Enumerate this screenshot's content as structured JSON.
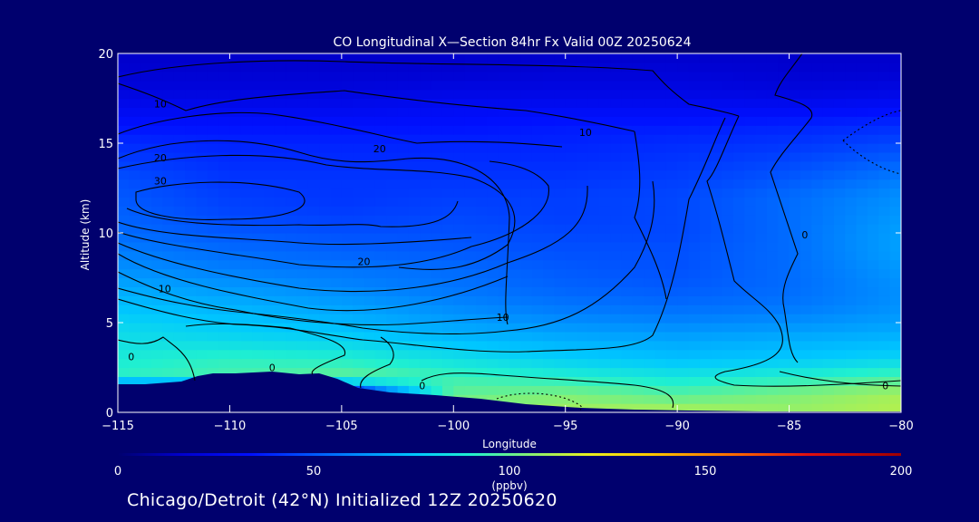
{
  "chart_data": {
    "type": "heatmap",
    "title": "CO Longitudinal X—Section 84hr  Fx Valid 00Z 20250624",
    "xlabel": "Longitude",
    "ylabel": "Altitude (km)",
    "xlim": [
      -115,
      -80
    ],
    "ylim": [
      0,
      20
    ],
    "x_ticks": [
      -115,
      -110,
      -105,
      -100,
      -95,
      -90,
      -85,
      -80
    ],
    "x_tick_labels": [
      "−115",
      "−110",
      "−105",
      "−100",
      "−95",
      "−90",
      "−85",
      "−80"
    ],
    "y_ticks": [
      0,
      5,
      10,
      15,
      20
    ],
    "y_tick_labels": [
      "0",
      "5",
      "10",
      "15",
      "20"
    ],
    "colorbar": {
      "min": 0,
      "max": 200,
      "ticks": [
        0,
        50,
        100,
        150,
        200
      ],
      "tick_labels": [
        "0",
        "50",
        "100",
        "150",
        "200"
      ],
      "unit": "(ppbv)"
    },
    "field_x": [
      -115,
      -110,
      -105,
      -100,
      -95,
      -90,
      -85,
      -80
    ],
    "field_y": [
      0,
      1,
      2,
      3,
      4,
      5,
      6,
      7,
      8,
      9,
      10,
      11,
      12,
      13,
      14,
      15,
      16,
      17,
      18,
      19,
      20
    ],
    "field_values": [
      [
        null,
        null,
        null,
        108,
        110,
        112,
        108,
        112
      ],
      [
        null,
        null,
        null,
        100,
        104,
        98,
        104,
        110
      ],
      [
        92,
        96,
        100,
        94,
        90,
        86,
        90,
        96
      ],
      [
        88,
        92,
        90,
        84,
        78,
        74,
        76,
        80
      ],
      [
        84,
        82,
        80,
        74,
        70,
        68,
        70,
        72
      ],
      [
        80,
        76,
        72,
        66,
        62,
        60,
        62,
        66
      ],
      [
        74,
        70,
        66,
        60,
        56,
        54,
        56,
        62
      ],
      [
        68,
        64,
        60,
        56,
        52,
        50,
        54,
        62
      ],
      [
        62,
        58,
        56,
        54,
        50,
        48,
        54,
        64
      ],
      [
        58,
        54,
        52,
        50,
        48,
        48,
        54,
        66
      ],
      [
        54,
        50,
        48,
        48,
        46,
        46,
        54,
        66
      ],
      [
        52,
        46,
        44,
        46,
        44,
        46,
        54,
        64
      ],
      [
        50,
        44,
        42,
        44,
        44,
        46,
        54,
        62
      ],
      [
        48,
        42,
        42,
        42,
        42,
        44,
        50,
        58
      ],
      [
        44,
        40,
        40,
        40,
        40,
        42,
        46,
        52
      ],
      [
        40,
        38,
        38,
        38,
        38,
        40,
        42,
        46
      ],
      [
        34,
        34,
        34,
        34,
        36,
        36,
        38,
        40
      ],
      [
        28,
        28,
        28,
        30,
        30,
        30,
        30,
        32
      ],
      [
        22,
        22,
        22,
        24,
        24,
        24,
        22,
        24
      ],
      [
        18,
        18,
        18,
        18,
        20,
        20,
        18,
        18
      ],
      [
        16,
        16,
        16,
        16,
        16,
        16,
        16,
        16
      ]
    ],
    "contour_labels": [
      {
        "text": "10",
        "x": -113.1,
        "y": 17.2
      },
      {
        "text": "20",
        "x": -113.1,
        "y": 14.2
      },
      {
        "text": "30",
        "x": -113.1,
        "y": 12.9
      },
      {
        "text": "20",
        "x": -103.3,
        "y": 14.7
      },
      {
        "text": "10",
        "x": -94.1,
        "y": 15.6
      },
      {
        "text": "20",
        "x": -104.0,
        "y": 8.4
      },
      {
        "text": "10",
        "x": -112.9,
        "y": 6.9
      },
      {
        "text": "10",
        "x": -97.8,
        "y": 5.3
      },
      {
        "text": "0",
        "x": -114.4,
        "y": 3.1
      },
      {
        "text": "0",
        "x": -108.1,
        "y": 2.5
      },
      {
        "text": "0",
        "x": -101.4,
        "y": 1.5
      },
      {
        "text": "0",
        "x": -84.3,
        "y": 9.9
      },
      {
        "text": "0",
        "x": -80.7,
        "y": 1.5
      }
    ]
  },
  "footer": "Chicago/Detroit (42°N) Initialized 12Z 20250620"
}
